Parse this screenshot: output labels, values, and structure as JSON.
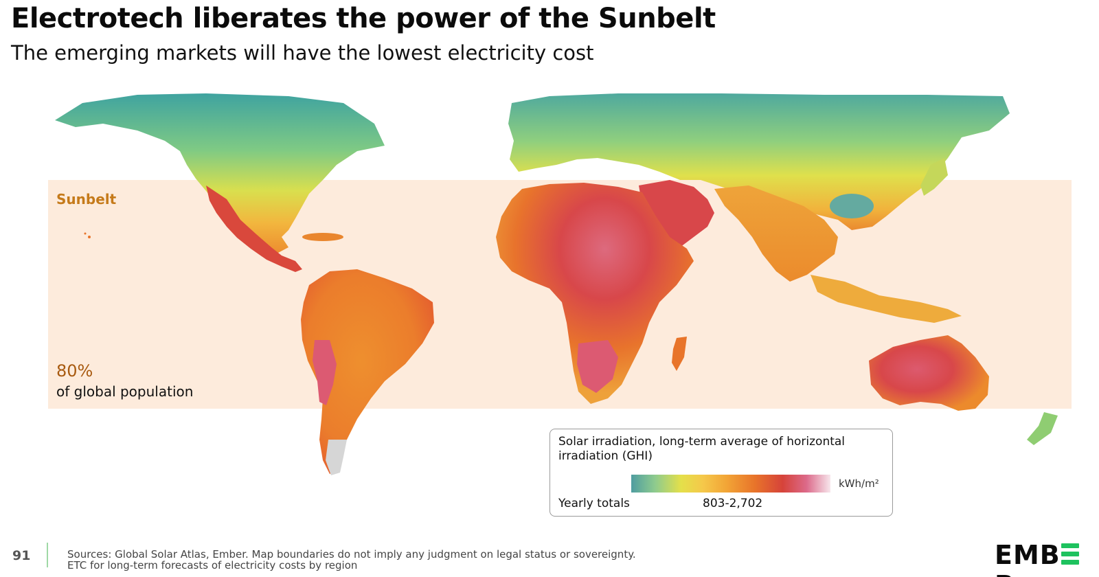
{
  "header": {
    "title": "Electrotech liberates the power of the Sunbelt",
    "subtitle": "The emerging markets will have the lowest electricity cost"
  },
  "sunbelt": {
    "label": "Sunbelt",
    "population_share": "80%",
    "population_text": "of global population",
    "color": "#fdebdc"
  },
  "legend": {
    "title": "Solar irradiation, long-term average of horizontal irradiation (GHI)",
    "row_label": "Yearly totals",
    "range": "803-2,702",
    "unit": "kWh/m²",
    "colors": [
      "#4f9da0",
      "#8ecb8e",
      "#e4e04a",
      "#f5c84a",
      "#f2a436",
      "#e8742a",
      "#d6433a",
      "#dc6a8a",
      "#f7e6ec"
    ]
  },
  "footer": {
    "page_number": "91",
    "source_line_1": "Sources: Global Solar Atlas, Ember. Map boundaries do not imply any judgment on legal status or sovereignty.",
    "source_line_2": "ETC for long-term forecasts of electricity costs by region",
    "logo_left": "EMB",
    "logo_right": "R",
    "logo_accent": "#1ec25e"
  }
}
